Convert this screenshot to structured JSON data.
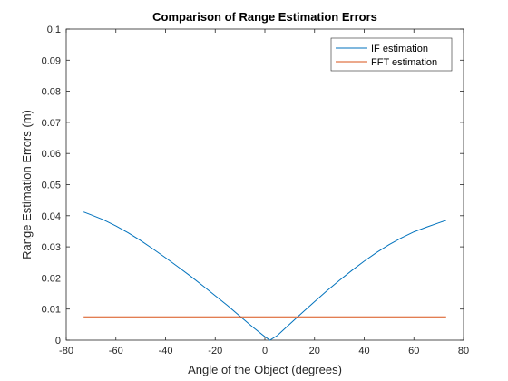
{
  "chart_data": {
    "type": "line",
    "title": "Comparison of Range Estimation Errors",
    "xlabel": "Angle of the Object (degrees)",
    "ylabel": "Range Estimation Errors (m)",
    "xlim": [
      -80,
      80
    ],
    "ylim": [
      0,
      0.1
    ],
    "xticks": [
      -80,
      -60,
      -40,
      -20,
      0,
      20,
      40,
      60,
      80
    ],
    "yticks": [
      0,
      0.01,
      0.02,
      0.03,
      0.04,
      0.05,
      0.06,
      0.07,
      0.08,
      0.09,
      0.1
    ],
    "xtick_labels": [
      "-80",
      "-60",
      "-40",
      "-20",
      "0",
      "20",
      "40",
      "60",
      "80"
    ],
    "ytick_labels": [
      "0",
      "0.01",
      "0.02",
      "0.03",
      "0.04",
      "0.05",
      "0.06",
      "0.07",
      "0.08",
      "0.09",
      "0.1"
    ],
    "grid": false,
    "legend": "top-right",
    "series": [
      {
        "name": "IF estimation",
        "color": "#0072BD",
        "x": [
          -73,
          -70,
          -65,
          -60,
          -55,
          -50,
          -45,
          -40,
          -35,
          -30,
          -25,
          -20,
          -15,
          -10,
          -5,
          0,
          2,
          5,
          10,
          15,
          20,
          25,
          30,
          35,
          40,
          45,
          50,
          55,
          60,
          65,
          70,
          73
        ],
        "y": [
          0.0412,
          0.0403,
          0.0387,
          0.0367,
          0.0345,
          0.032,
          0.0293,
          0.0265,
          0.0236,
          0.0206,
          0.0175,
          0.0143,
          0.0111,
          0.0077,
          0.0043,
          0.0011,
          0.0,
          0.0015,
          0.0052,
          0.0088,
          0.0124,
          0.0159,
          0.0192,
          0.0224,
          0.0254,
          0.0282,
          0.0307,
          0.0329,
          0.0348,
          0.0363,
          0.0377,
          0.0385
        ]
      },
      {
        "name": "FFT estimation",
        "color": "#D95319",
        "x": [
          -73,
          73
        ],
        "y": [
          0.0075,
          0.0075
        ]
      }
    ]
  }
}
